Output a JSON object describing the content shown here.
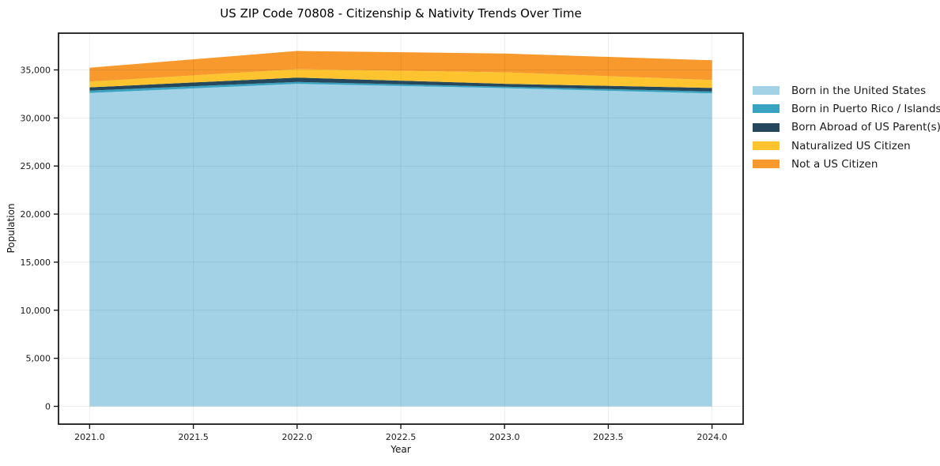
{
  "title": "US ZIP Code 70808 - Citizenship & Nativity Trends Over Time",
  "chart_data": {
    "type": "area",
    "stacked": true,
    "title": "US ZIP Code 70808 - Citizenship & Nativity Trends Over Time",
    "xlabel": "Year",
    "ylabel": "Population",
    "x": [
      2021,
      2022,
      2023,
      2024
    ],
    "series": [
      {
        "name": "Born in the United States",
        "color": "#a3d2e7",
        "values": [
          32600,
          33550,
          33100,
          32550
        ]
      },
      {
        "name": "Born in Puerto Rico / Islands",
        "color": "#39a3c2",
        "values": [
          250,
          200,
          150,
          200
        ]
      },
      {
        "name": "Born Abroad of US Parent(s)",
        "color": "#25485c",
        "values": [
          330,
          450,
          300,
          380
        ]
      },
      {
        "name": "Naturalized US Citizen",
        "color": "#fdc430",
        "values": [
          600,
          870,
          1200,
          820
        ]
      },
      {
        "name": "Not a US Citizen",
        "color": "#f8992d",
        "values": [
          1450,
          1900,
          1950,
          2050
        ]
      }
    ],
    "x_ticks": [
      2021.0,
      2021.5,
      2022.0,
      2022.5,
      2023.0,
      2023.5,
      2024.0
    ],
    "y_ticks": [
      0,
      5000,
      10000,
      15000,
      20000,
      25000,
      30000,
      35000
    ],
    "xlim": [
      2020.85,
      2024.15
    ],
    "ylim": [
      -1850,
      38820
    ],
    "grid": true,
    "legend_position": "right"
  }
}
